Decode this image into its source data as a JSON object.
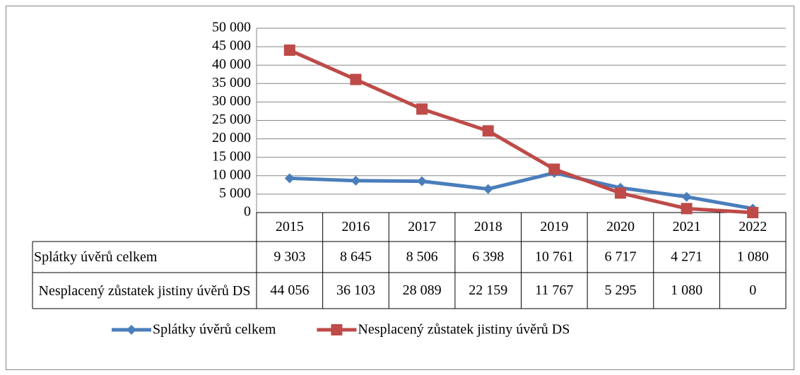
{
  "chart_data": {
    "type": "line",
    "categories": [
      "2015",
      "2016",
      "2017",
      "2018",
      "2019",
      "2020",
      "2021",
      "2022"
    ],
    "series": [
      {
        "name": "Splátky úvěrů celkem",
        "color": "#4a7ebb",
        "marker": "diamond",
        "values": [
          9303,
          8645,
          8506,
          6398,
          10761,
          6717,
          4271,
          1080
        ],
        "value_labels": [
          "9 303",
          "8 645",
          "8 506",
          "6 398",
          "10 761",
          "6 717",
          "4 271",
          "1 080"
        ]
      },
      {
        "name": "Nesplacený zůstatek jistiny úvěrů DS",
        "color": "#be4b48",
        "marker": "square",
        "values": [
          44056,
          36103,
          28089,
          22159,
          11767,
          5295,
          1080,
          0
        ],
        "value_labels": [
          "44 056",
          "36 103",
          "28 089",
          "22 159",
          "11 767",
          "5 295",
          "1 080",
          "0"
        ]
      }
    ],
    "ylim": [
      0,
      50000
    ],
    "yticks": [
      0,
      {
        "value": 5000,
        "label": "5 000"
      },
      {
        "value": 10000,
        "label": "10 000"
      },
      {
        "value": 15000,
        "label": "15 000"
      },
      {
        "value": 20000,
        "label": "20 000"
      },
      {
        "value": 25000,
        "label": "25 000"
      },
      {
        "value": 30000,
        "label": "30 000"
      },
      {
        "value": 35000,
        "label": "35 000"
      },
      {
        "value": 40000,
        "label": "40 000"
      },
      {
        "value": 45000,
        "label": "45 000"
      },
      {
        "value": 50000,
        "label": "50 000"
      }
    ],
    "grid": true,
    "data_table": true,
    "legend": "bottom"
  }
}
